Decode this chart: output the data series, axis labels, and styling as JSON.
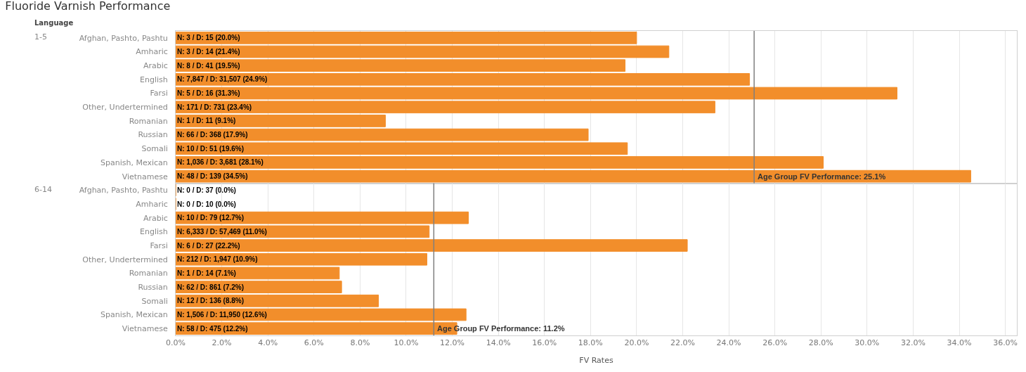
{
  "chart_data": [
    {
      "type": "bar",
      "orientation": "horizontal",
      "title": "Fluoride Varnish Performance",
      "subtitle": "Language",
      "ylabel": "1-5",
      "categories": [
        "Afghan, Pashto, Pashtu",
        "Amharic",
        "Arabic",
        "English",
        "Farsi",
        "Other, Undertermined",
        "Romanian",
        "Russian",
        "Somali",
        "Spanish, Mexican",
        "Vietnamese"
      ],
      "values": [
        20.0,
        21.4,
        19.5,
        24.9,
        31.3,
        23.4,
        9.1,
        17.9,
        19.6,
        28.1,
        34.5
      ],
      "value_labels": [
        "N: 3 / D: 15 (20.0%)",
        "N: 3 / D: 14 (21.4%)",
        "N: 8 / D: 41 (19.5%)",
        "N: 7,847 / D: 31,507 (24.9%)",
        "N: 5 / D: 16 (31.3%)",
        "N: 171 / D: 731 (23.4%)",
        "N: 1 / D: 11 (9.1%)",
        "N: 66 / D: 368 (17.9%)",
        "N: 10 / D: 51 (19.6%)",
        "N: 1,036 / D: 3,681 (28.1%)",
        "N: 48 / D: 139 (34.5%)"
      ],
      "color": "#f28e2b",
      "xlim": [
        0,
        36.5
      ],
      "xticks": [
        {
          "value": 0,
          "label": null
        },
        {
          "value": 2,
          "label": null
        },
        {
          "value": 4,
          "label": null
        },
        {
          "value": 6,
          "label": null
        },
        {
          "value": 8,
          "label": null
        },
        {
          "value": 10,
          "label": null
        },
        {
          "value": 12,
          "label": null
        },
        {
          "value": 14,
          "label": null
        },
        {
          "value": 16,
          "label": null
        },
        {
          "value": 18,
          "label": null
        },
        {
          "value": 20,
          "label": null
        },
        {
          "value": 22,
          "label": null
        },
        {
          "value": 24,
          "label": null
        },
        {
          "value": 26,
          "label": null
        },
        {
          "value": 28,
          "label": null
        },
        {
          "value": 30,
          "label": null
        },
        {
          "value": 32,
          "label": null
        },
        {
          "value": 34,
          "label": null
        },
        {
          "value": 36,
          "label": null
        }
      ],
      "ref_lines": [
        {
          "axis": "x",
          "value": 25.1,
          "label": "Age Group FV Performance: 25.1%",
          "color": "#7f7f7f"
        }
      ],
      "grid": "x",
      "tick_labels": "y"
    },
    {
      "type": "bar",
      "orientation": "horizontal",
      "ylabel": "6-14",
      "xlabel": "FV Rates",
      "categories": [
        "Afghan, Pashto, Pashtu",
        "Amharic",
        "Arabic",
        "English",
        "Farsi",
        "Other, Undertermined",
        "Romanian",
        "Russian",
        "Somali",
        "Spanish, Mexican",
        "Vietnamese"
      ],
      "values": [
        0.0,
        0.0,
        12.7,
        11.0,
        22.2,
        10.9,
        7.1,
        7.2,
        8.8,
        12.6,
        12.2
      ],
      "value_labels": [
        "N: 0 / D: 37 (0.0%)",
        "N: 0 / D: 10 (0.0%)",
        "N: 10 / D: 79 (12.7%)",
        "N: 6,333 / D: 57,469 (11.0%)",
        "N: 6 / D: 27 (22.2%)",
        "N: 212 / D: 1,947 (10.9%)",
        "N: 1 / D: 14 (7.1%)",
        "N: 62 / D: 861 (7.2%)",
        "N: 12 / D: 136 (8.8%)",
        "N: 1,506 / D: 11,950 (12.6%)",
        "N: 58 / D: 475 (12.2%)"
      ],
      "color": "#f28e2b",
      "xlim": [
        0,
        36.5
      ],
      "xticks": [
        {
          "value": 0,
          "label": "0.0%"
        },
        {
          "value": 2,
          "label": "2.0%"
        },
        {
          "value": 4,
          "label": "4.0%"
        },
        {
          "value": 6,
          "label": "6.0%"
        },
        {
          "value": 8,
          "label": "8.0%"
        },
        {
          "value": 10,
          "label": "10.0%"
        },
        {
          "value": 12,
          "label": "12.0%"
        },
        {
          "value": 14,
          "label": "14.0%"
        },
        {
          "value": 16,
          "label": "16.0%"
        },
        {
          "value": 18,
          "label": "18.0%"
        },
        {
          "value": 20,
          "label": "20.0%"
        },
        {
          "value": 22,
          "label": "22.0%"
        },
        {
          "value": 24,
          "label": "24.0%"
        },
        {
          "value": 26,
          "label": "26.0%"
        },
        {
          "value": 28,
          "label": "28.0%"
        },
        {
          "value": 30,
          "label": "30.0%"
        },
        {
          "value": 32,
          "label": "32.0%"
        },
        {
          "value": 34,
          "label": "34.0%"
        },
        {
          "value": 36,
          "label": "36.0%"
        }
      ],
      "ref_lines": [
        {
          "axis": "x",
          "value": 11.2,
          "label": "Age Group FV Performance: 11.2%",
          "color": "#7f7f7f"
        }
      ],
      "grid": "x"
    }
  ]
}
